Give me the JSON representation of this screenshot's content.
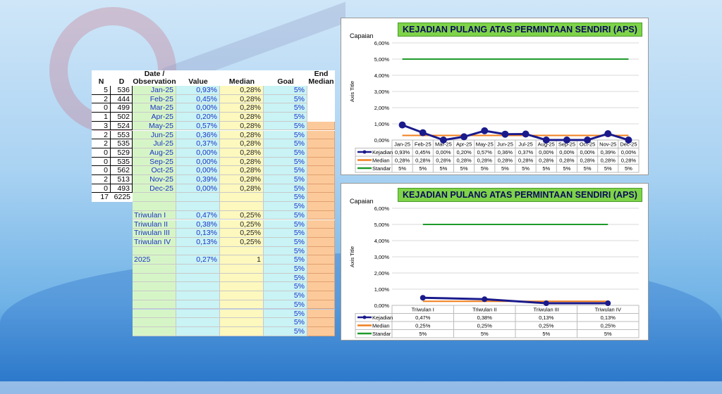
{
  "sheet": {
    "headers": {
      "n": "N",
      "d": "D",
      "date": "Date / Observation",
      "value": "Value",
      "median": "Median",
      "goal": "Goal",
      "end": "End Median"
    },
    "months": [
      {
        "n": "5",
        "d": "536",
        "date": "Jan-25",
        "value": "0,93%",
        "median": "0,28%",
        "goal": "5%"
      },
      {
        "n": "2",
        "d": "444",
        "date": "Feb-25",
        "value": "0,45%",
        "median": "0,28%",
        "goal": "5%"
      },
      {
        "n": "0",
        "d": "499",
        "date": "Mar-25",
        "value": "0,00%",
        "median": "0,28%",
        "goal": "5%"
      },
      {
        "n": "1",
        "d": "502",
        "date": "Apr-25",
        "value": "0,20%",
        "median": "0,28%",
        "goal": "5%"
      },
      {
        "n": "3",
        "d": "524",
        "date": "May-25",
        "value": "0,57%",
        "median": "0,28%",
        "goal": "5%"
      },
      {
        "n": "2",
        "d": "553",
        "date": "Jun-25",
        "value": "0,36%",
        "median": "0,28%",
        "goal": "5%"
      },
      {
        "n": "2",
        "d": "535",
        "date": "Jul-25",
        "value": "0,37%",
        "median": "0,28%",
        "goal": "5%"
      },
      {
        "n": "0",
        "d": "529",
        "date": "Aug-25",
        "value": "0,00%",
        "median": "0,28%",
        "goal": "5%"
      },
      {
        "n": "0",
        "d": "535",
        "date": "Sep-25",
        "value": "0,00%",
        "median": "0,28%",
        "goal": "5%"
      },
      {
        "n": "0",
        "d": "562",
        "date": "Oct-25",
        "value": "0,00%",
        "median": "0,28%",
        "goal": "5%"
      },
      {
        "n": "2",
        "d": "513",
        "date": "Nov-25",
        "value": "0,39%",
        "median": "0,28%",
        "goal": "5%"
      },
      {
        "n": "0",
        "d": "493",
        "date": "Dec-25",
        "value": "0,00%",
        "median": "0,28%",
        "goal": "5%"
      }
    ],
    "total": {
      "n": "17",
      "d": "6225",
      "goal": "5%"
    },
    "quarters": [
      {
        "date": "Triwulan I",
        "value": "0,47%",
        "median": "0,25%",
        "goal": "5%"
      },
      {
        "date": "Triwulan II",
        "value": "0,38%",
        "median": "0,25%",
        "goal": "5%"
      },
      {
        "date": "Triwulan III",
        "value": "0,13%",
        "median": "0,25%",
        "goal": "5%"
      },
      {
        "date": "Triwulan IV",
        "value": "0,13%",
        "median": "0,25%",
        "goal": "5%"
      }
    ],
    "year": {
      "date": "2025",
      "value": "0,27%",
      "median": "1",
      "goal": "5%"
    },
    "goal_blank": "5%"
  },
  "chart_data": [
    {
      "type": "line",
      "title": "KEJADIAN PULANG ATAS PERMINTAAN SENDIRI (APS)",
      "ylabel": "Axis Title",
      "caption": "Capaian",
      "ylim": [
        0,
        6
      ],
      "yticks": [
        "0,00%",
        "1,00%",
        "2,00%",
        "3,00%",
        "4,00%",
        "5,00%",
        "6,00%"
      ],
      "categories": [
        "Jan-25",
        "Feb-25",
        "Mar-25",
        "Apr-25",
        "May-25",
        "Jun-25",
        "Jul-25",
        "Aug-25",
        "Sep-25",
        "Oct-25",
        "Nov-25",
        "Dec-25"
      ],
      "series": [
        {
          "name": "Kejadian",
          "color": "#1a1a8c",
          "values": [
            0.93,
            0.45,
            0,
            0.2,
            0.57,
            0.36,
            0.37,
            0,
            0,
            0,
            0.39,
            0
          ],
          "labels": [
            "0,93%",
            "0,45%",
            "0,00%",
            "0,20%",
            "0,57%",
            "0,36%",
            "0,37%",
            "0,00%",
            "0,00%",
            "0,00%",
            "0,39%",
            "0,00%"
          ]
        },
        {
          "name": "Median",
          "color": "#f07f1e",
          "values": [
            0.28,
            0.28,
            0.28,
            0.28,
            0.28,
            0.28,
            0.28,
            0.28,
            0.28,
            0.28,
            0.28,
            0.28
          ],
          "labels": [
            "0,28%",
            "0,28%",
            "0,28%",
            "0,28%",
            "0,28%",
            "0,28%",
            "0,28%",
            "0,28%",
            "0,28%",
            "0,28%",
            "0,28%",
            "0,28%"
          ]
        },
        {
          "name": "Standar",
          "color": "#1f9a2a",
          "values": [
            5,
            5,
            5,
            5,
            5,
            5,
            5,
            5,
            5,
            5,
            5,
            5
          ],
          "labels": [
            "5%",
            "5%",
            "5%",
            "5%",
            "5%",
            "5%",
            "5%",
            "5%",
            "5%",
            "5%",
            "5%",
            "5%"
          ]
        }
      ]
    },
    {
      "type": "line",
      "title": "KEJADIAN PULANG ATAS PERMINTAAN SENDIRI (APS)",
      "ylabel": "Axis Title",
      "caption": "Capaian",
      "ylim": [
        0,
        6
      ],
      "yticks": [
        "0,00%",
        "1,00%",
        "2,00%",
        "3,00%",
        "4,00%",
        "5,00%",
        "6,00%"
      ],
      "categories": [
        "Triwulan I",
        "Triwulan II",
        "Triwulan III",
        "Triwulan IV"
      ],
      "series": [
        {
          "name": "Kejadian",
          "color": "#1a1a8c",
          "values": [
            0.47,
            0.38,
            0.13,
            0.13
          ],
          "labels": [
            "0,47%",
            "0,38%",
            "0,13%",
            "0,13%"
          ]
        },
        {
          "name": "Median",
          "color": "#f07f1e",
          "values": [
            0.25,
            0.25,
            0.25,
            0.25
          ],
          "labels": [
            "0,25%",
            "0,25%",
            "0,25%",
            "0,25%"
          ]
        },
        {
          "name": "Standar",
          "color": "#1f9a2a",
          "values": [
            5,
            5,
            5,
            5
          ],
          "labels": [
            "5%",
            "5%",
            "5%",
            "5%"
          ]
        }
      ]
    }
  ]
}
